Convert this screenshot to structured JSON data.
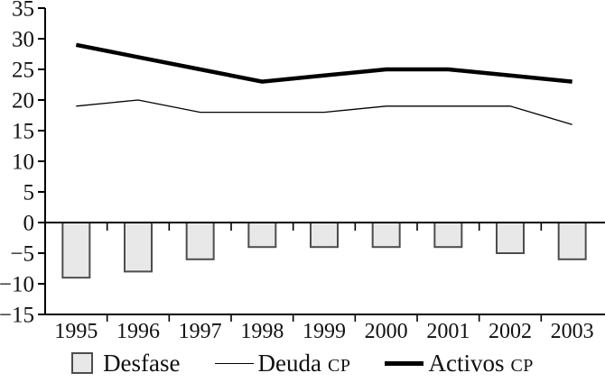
{
  "figure": {
    "background": "#ffffff",
    "text_color": "#111111"
  },
  "chart_data": {
    "type": "bar",
    "subtype": "combo-bar-line",
    "title": "",
    "xlabel": "",
    "ylabel": "",
    "categories": [
      "1995",
      "1996",
      "1997",
      "1998",
      "1999",
      "2000",
      "2001",
      "2002",
      "2003"
    ],
    "series": [
      {
        "name": "Desfase",
        "type": "bar",
        "values": [
          -9,
          -8,
          -6,
          -4,
          -4,
          -4,
          -4,
          -5,
          -6
        ],
        "fill": "#e8e8e8",
        "stroke": "#4d4d4d"
      },
      {
        "name": "Deuda CP",
        "type": "line",
        "values": [
          19,
          20,
          18,
          18,
          18,
          19,
          19,
          19,
          16
        ],
        "color": "#000000",
        "thickness": "thin"
      },
      {
        "name": "Activos CP",
        "type": "line",
        "values": [
          29,
          27,
          25,
          23,
          24,
          25,
          25,
          24,
          23
        ],
        "color": "#000000",
        "thickness": "thick"
      }
    ],
    "ylim": [
      -15,
      35
    ],
    "ytick_step": 5,
    "yticks": [
      35,
      30,
      25,
      20,
      15,
      10,
      5,
      0,
      -5,
      -10,
      -15
    ],
    "grid": false,
    "legend_position": "bottom",
    "axis_color": "#000000"
  },
  "legend": {
    "items": [
      {
        "label": "Desfase",
        "suffix": ""
      },
      {
        "label": "Deuda",
        "suffix": "CP"
      },
      {
        "label": "Activos",
        "suffix": "CP"
      }
    ]
  }
}
